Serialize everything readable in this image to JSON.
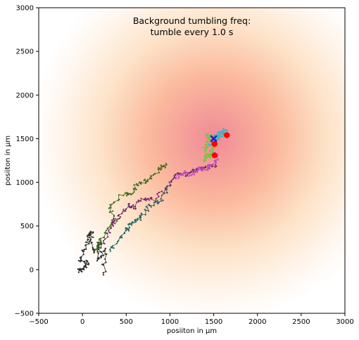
{
  "chart_data": {
    "type": "scatter",
    "title_lines": [
      "Background tumbling freq:",
      "tumble every 1.0 s"
    ],
    "xlabel": "posiiton in μm",
    "ylabel": "posiiton in μm",
    "xlim": [
      -500,
      3000
    ],
    "ylim": [
      -500,
      3000
    ],
    "x_ticks": [
      "-500",
      "0",
      "500",
      "1000",
      "1500",
      "2000",
      "2500",
      "3000"
    ],
    "y_ticks": [
      "-500",
      "0",
      "500",
      "1000",
      "1500",
      "2000",
      "2500",
      "3000"
    ],
    "grid": false,
    "background": {
      "type": "radial-gradient",
      "center": [
        1500,
        1500
      ],
      "colors": [
        "#f08a96",
        "#fbb99d",
        "#fde3c8",
        "#fff6ee",
        "#ffffff"
      ]
    },
    "target": {
      "x": 1500,
      "y": 1500,
      "marker": "x",
      "color": "#1f1fd6"
    },
    "trajectories": [
      {
        "color": "#2a2a2a",
        "points": [
          [
            -50,
            -20
          ],
          [
            0,
            0
          ],
          [
            60,
            80
          ],
          [
            -30,
            120
          ],
          [
            40,
            260
          ],
          [
            120,
            420
          ],
          [
            60,
            380
          ],
          [
            140,
            200
          ],
          [
            210,
            330
          ],
          [
            180,
            90
          ],
          [
            260,
            250
          ],
          [
            240,
            -60
          ]
        ]
      },
      {
        "color": "#3d6b1f",
        "points": [
          [
            210,
            330
          ],
          [
            150,
            200
          ],
          [
            260,
            430
          ],
          [
            380,
            560
          ],
          [
            300,
            720
          ],
          [
            470,
            860
          ],
          [
            560,
            880
          ],
          [
            650,
            1000
          ],
          [
            760,
            1020
          ],
          [
            880,
            1160
          ],
          [
            960,
            1200
          ]
        ]
      },
      {
        "color": "#6b2466",
        "points": [
          [
            240,
            280
          ],
          [
            330,
            520
          ],
          [
            420,
            620
          ],
          [
            520,
            740
          ],
          [
            600,
            720
          ],
          [
            700,
            820
          ],
          [
            820,
            800
          ],
          [
            980,
            960
          ],
          [
            1060,
            1080
          ],
          [
            1200,
            1100
          ],
          [
            1300,
            1140
          ],
          [
            1420,
            1180
          ],
          [
            1520,
            1200
          ]
        ]
      },
      {
        "color": "#1e5e5e",
        "points": [
          [
            300,
            200
          ],
          [
            430,
            380
          ],
          [
            520,
            480
          ],
          [
            600,
            560
          ],
          [
            680,
            600
          ],
          [
            760,
            730
          ],
          [
            900,
            800
          ],
          [
            1000,
            960
          ]
        ]
      },
      {
        "color": "#c44ac8",
        "points": [
          [
            1080,
            1060
          ],
          [
            1160,
            1110
          ],
          [
            1250,
            1090
          ],
          [
            1330,
            1160
          ],
          [
            1420,
            1150
          ],
          [
            1500,
            1220
          ],
          [
            1540,
            1300
          ]
        ]
      },
      {
        "color": "#6cc93a",
        "points": [
          [
            1380,
            1250
          ],
          [
            1440,
            1300
          ],
          [
            1400,
            1390
          ],
          [
            1460,
            1480
          ],
          [
            1420,
            1540
          ],
          [
            1500,
            1520
          ],
          [
            1540,
            1440
          ],
          [
            1480,
            1360
          ],
          [
            1420,
            1290
          ]
        ]
      },
      {
        "color": "#3ab3c0",
        "points": [
          [
            1450,
            1420
          ],
          [
            1520,
            1470
          ],
          [
            1580,
            1540
          ],
          [
            1640,
            1600
          ],
          [
            1560,
            1560
          ],
          [
            1500,
            1500
          ]
        ]
      }
    ],
    "endpoints": [
      {
        "x": 1650,
        "y": 1540
      },
      {
        "x": 1510,
        "y": 1440
      },
      {
        "x": 1510,
        "y": 1310
      }
    ],
    "endpoint_color": "#ff0000"
  }
}
